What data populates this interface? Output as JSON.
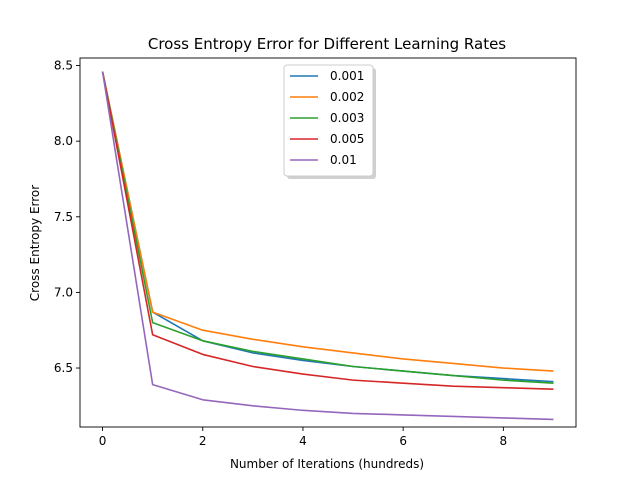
{
  "chart_data": {
    "type": "line",
    "title": "Cross Entropy Error for Different Learning Rates",
    "xlabel": "Number of Iterations (hundreds)",
    "ylabel": "Cross Entropy Error",
    "xlim": [
      -0.45,
      9.45
    ],
    "ylim": [
      6.11,
      8.55
    ],
    "xticks": [
      0,
      2,
      4,
      6,
      8
    ],
    "yticks": [
      6.5,
      7.0,
      7.5,
      8.0,
      8.5
    ],
    "xtick_labels": [
      "0",
      "2",
      "4",
      "6",
      "8"
    ],
    "ytick_labels": [
      "6.5",
      "7.0",
      "7.5",
      "8.0",
      "8.5"
    ],
    "legend_position": "top-center",
    "grid": false,
    "x": [
      0,
      1,
      2,
      3,
      4,
      5,
      6,
      7,
      8,
      9
    ],
    "series": [
      {
        "name": "0.001",
        "color": "#1f77b4",
        "values": [
          8.46,
          6.87,
          6.68,
          6.6,
          6.55,
          6.51,
          6.48,
          6.45,
          6.43,
          6.41
        ]
      },
      {
        "name": "0.002",
        "color": "#ff7f0e",
        "values": [
          8.46,
          6.87,
          6.75,
          6.69,
          6.64,
          6.6,
          6.56,
          6.53,
          6.5,
          6.48
        ]
      },
      {
        "name": "0.003",
        "color": "#2ca02c",
        "values": [
          8.46,
          6.8,
          6.68,
          6.61,
          6.56,
          6.51,
          6.48,
          6.45,
          6.42,
          6.4
        ]
      },
      {
        "name": "0.005",
        "color": "#d62728",
        "values": [
          8.46,
          6.72,
          6.59,
          6.51,
          6.46,
          6.42,
          6.4,
          6.38,
          6.37,
          6.36
        ]
      },
      {
        "name": "0.01",
        "color": "#9467bd",
        "values": [
          8.46,
          6.39,
          6.29,
          6.25,
          6.22,
          6.2,
          6.19,
          6.18,
          6.17,
          6.16
        ]
      }
    ]
  }
}
